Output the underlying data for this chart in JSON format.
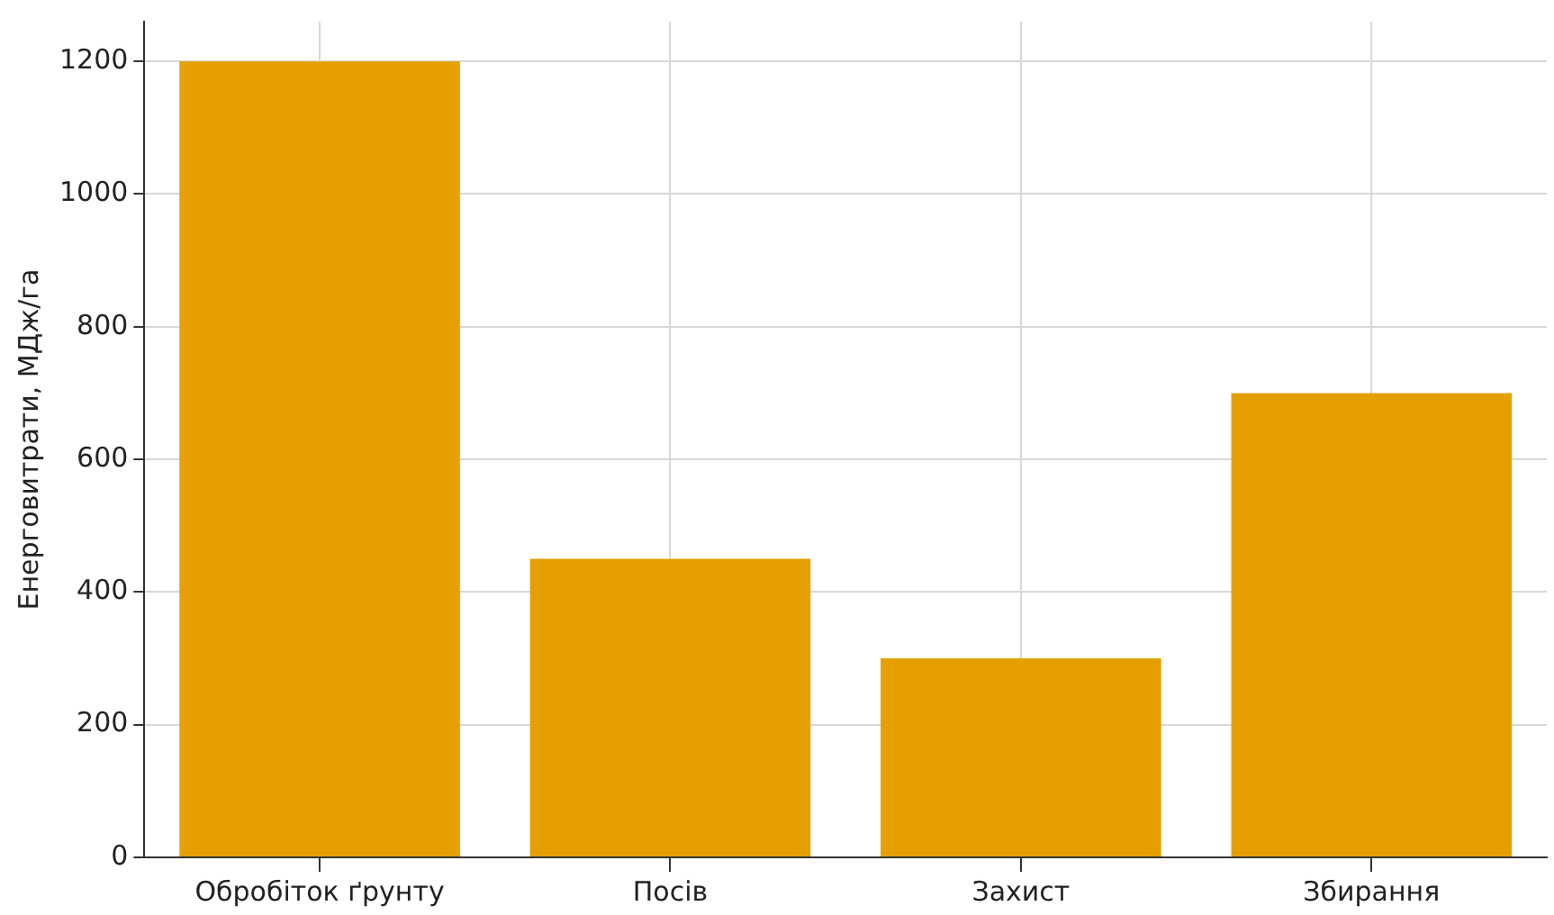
{
  "chart_data": {
    "type": "bar",
    "ylabel": "Енерговитрати, МДж/га",
    "categories": [
      "Обробіток ґрунту",
      "Посів",
      "Захист",
      "Збирання"
    ],
    "values": [
      1200,
      450,
      300,
      700
    ],
    "color": "#e5a000",
    "ylim": [
      0,
      1260
    ],
    "yticks": [
      0,
      200,
      400,
      600,
      800,
      1000,
      1200
    ],
    "grid": true
  }
}
